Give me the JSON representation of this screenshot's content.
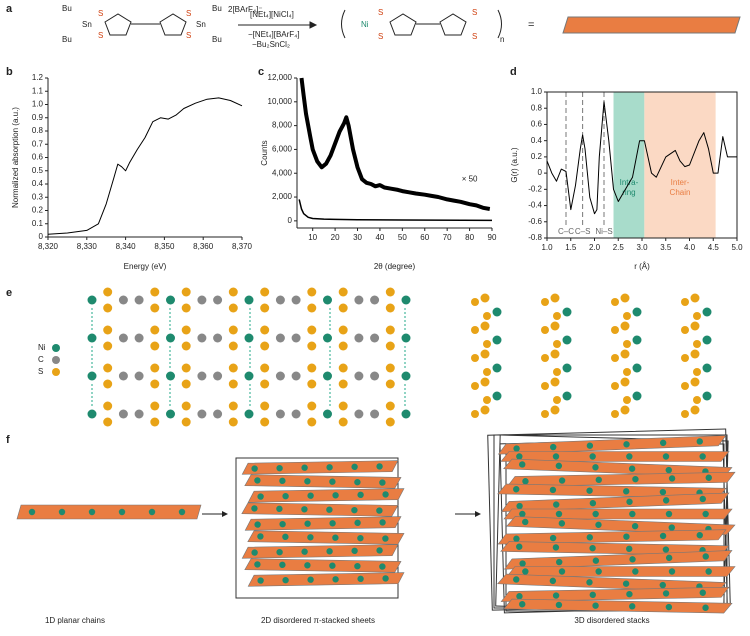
{
  "panel_labels": [
    "a",
    "b",
    "c",
    "d",
    "e",
    "f"
  ],
  "panel_a": {
    "atoms": [
      "Bu",
      "Sn",
      "S",
      "Ni"
    ],
    "counterion": "2[BArF₄]⁻",
    "reagent": "[NEt₄][NiCl₄]",
    "byproducts": [
      "−[NEt₄][BArF₄]",
      "−Bu₂SnCl₂"
    ],
    "n": "n",
    "equals": "="
  },
  "panel_e": {
    "legend": [
      "Ni",
      "C",
      "S"
    ]
  },
  "panel_f": {
    "captions": [
      "1D planar chains",
      "2D disordered π-stacked sheets",
      "3D disordered stacks"
    ]
  },
  "chart_data": [
    {
      "type": "line",
      "xlabel": "Energy (eV)",
      "ylabel": "Normalized absorption (a.u.)",
      "color": "#000",
      "x": [
        8320,
        8325,
        8330,
        8333,
        8335,
        8337,
        8338,
        8339,
        8340,
        8341,
        8343,
        8345,
        8347,
        8349,
        8351,
        8353,
        8355,
        8358,
        8361,
        8364,
        8367,
        8370
      ],
      "values": [
        0.02,
        0.03,
        0.05,
        0.1,
        0.25,
        0.45,
        0.55,
        0.53,
        0.5,
        0.56,
        0.66,
        0.75,
        0.87,
        0.9,
        0.89,
        0.92,
        0.97,
        1.01,
        1.04,
        1.05,
        1.03,
        0.99
      ],
      "xlim": [
        8320,
        8370
      ],
      "xticks": [
        {
          "value": 8320,
          "label": "8,320"
        },
        {
          "value": 8330,
          "label": "8,330"
        },
        {
          "value": 8340,
          "label": "8,340"
        },
        {
          "value": 8350,
          "label": "8,350"
        },
        {
          "value": 8360,
          "label": "8,360"
        },
        {
          "value": 8370,
          "label": "8,370"
        }
      ],
      "ylim": [
        0,
        1.2
      ],
      "yticks": [
        0,
        0.1,
        0.2,
        0.3,
        0.4,
        0.5,
        0.6,
        0.7,
        0.8,
        0.9,
        {
          "value": 1,
          "label": "1.0"
        },
        1.1,
        1.2
      ]
    },
    {
      "type": "line",
      "xlabel": "2θ (degree)",
      "ylabel": "Counts",
      "annotation": "× 50",
      "series": [
        {
          "color": "#000",
          "x": [
            5,
            6,
            7,
            8,
            9,
            10,
            12,
            14,
            16,
            18,
            20,
            22,
            24,
            25,
            26,
            28,
            30,
            32,
            34,
            36,
            38,
            40,
            42,
            45,
            48,
            50,
            53,
            56,
            60,
            63,
            66,
            70,
            73,
            76,
            80,
            83,
            86,
            89
          ],
          "values": [
            12000,
            10500,
            9000,
            8000,
            7000,
            6000,
            5000,
            4500,
            4800,
            5500,
            6500,
            7500,
            8200,
            8700,
            8000,
            6000,
            4500,
            3500,
            3200,
            3100,
            2900,
            3000,
            2800,
            2700,
            2600,
            2500,
            2400,
            2300,
            2200,
            2100,
            2000,
            1800,
            1700,
            1600,
            1400,
            1300,
            1100,
            1000
          ]
        },
        {
          "color": "#000",
          "x": [
            4,
            5,
            6,
            8,
            10,
            15,
            20,
            30,
            50,
            90
          ],
          "values": [
            1800,
            1000,
            600,
            300,
            200,
            150,
            120,
            100,
            70,
            40
          ]
        }
      ],
      "xlim": [
        3,
        90
      ],
      "xticks": [
        10,
        20,
        30,
        40,
        50,
        60,
        70,
        80,
        90
      ],
      "ylim": [
        -600,
        12000
      ],
      "yticks": [
        0,
        {
          "value": 2000,
          "label": "2,000"
        },
        {
          "value": 4000,
          "label": "4,000"
        },
        {
          "value": 6000,
          "label": "6,000"
        },
        {
          "value": 8000,
          "label": "8,000"
        },
        {
          "value": 10000,
          "label": "10,000"
        },
        {
          "value": 12000,
          "label": "12,000"
        }
      ]
    },
    {
      "type": "line",
      "xlabel": "r (Å)",
      "ylabel": "G(r) (a.u.)",
      "color": "#000",
      "x": [
        1.0,
        1.1,
        1.2,
        1.3,
        1.4,
        1.5,
        1.6,
        1.7,
        1.75,
        1.8,
        1.9,
        2.0,
        2.05,
        2.1,
        2.2,
        2.3,
        2.4,
        2.5,
        2.6,
        2.8,
        2.95,
        3.05,
        3.2,
        3.3,
        3.5,
        3.7,
        3.8,
        3.9,
        4.0,
        4.2,
        4.3,
        4.4,
        4.5,
        4.6,
        4.7,
        4.8,
        4.9,
        5.0
      ],
      "values": [
        0.15,
        0.0,
        -0.1,
        0.05,
        0.02,
        -0.45,
        -0.15,
        0.3,
        0.47,
        0.3,
        -0.3,
        -0.5,
        -0.45,
        0.2,
        0.88,
        0.4,
        -0.2,
        -0.35,
        -0.25,
        -0.05,
        0.4,
        0.4,
        0.0,
        -0.05,
        0.2,
        0.28,
        0.15,
        0.08,
        0.1,
        0.4,
        0.5,
        0.3,
        0.0,
        0.0,
        0.45,
        0.2,
        0.2,
        0.2
      ],
      "bonds": [
        {
          "label": "C–C",
          "x": 1.4
        },
        {
          "label": "C–S",
          "x": 1.75
        },
        {
          "label": "Ni–S",
          "x": 2.2
        }
      ],
      "regions": [
        {
          "label": [
            "Intra-",
            "ring"
          ],
          "from": 2.4,
          "to": 3.05,
          "color": "#a8dccb"
        },
        {
          "label": [
            "Inter-",
            "Chain"
          ],
          "from": 3.05,
          "to": 4.55,
          "color": "#fbd9c4"
        }
      ],
      "xlim": [
        1,
        5
      ],
      "xticks": [
        {
          "value": 1,
          "label": "1.0"
        },
        1.5,
        {
          "value": 2,
          "label": "2.0"
        },
        2.5,
        {
          "value": 3,
          "label": "3.0"
        },
        3.5,
        {
          "value": 4,
          "label": "4.0"
        },
        4.5,
        {
          "value": 5,
          "label": "5.0"
        }
      ],
      "ylim": [
        -0.8,
        1.0
      ],
      "yticks": [
        -0.8,
        -0.6,
        -0.4,
        -0.2,
        0,
        0.2,
        0.4,
        0.6,
        0.8,
        {
          "value": 1,
          "label": "1.0"
        }
      ]
    }
  ]
}
